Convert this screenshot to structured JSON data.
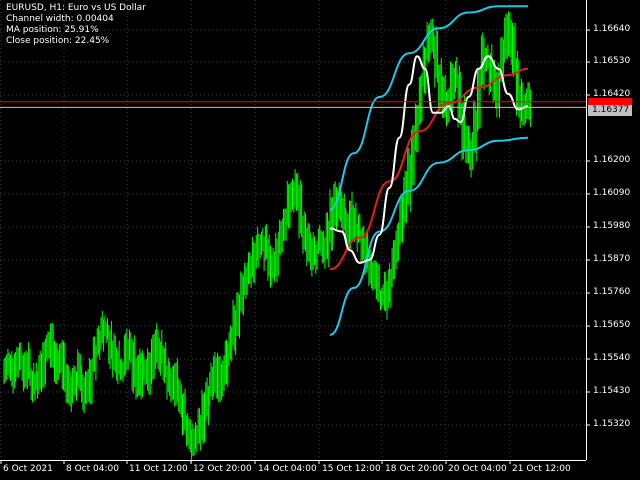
{
  "info": {
    "symbol_line": "EURUSD, H1:  Euro vs US Dollar",
    "channel_width": "Channel width: 0.00404",
    "ma_position": "MA position: 25.91%",
    "close_position": "Close position: 22.45%"
  },
  "price_axis": {
    "labels": [
      "1.16640",
      "1.16530",
      "1.16420",
      "1.16200",
      "1.16090",
      "1.15980",
      "1.15870",
      "1.15760",
      "1.15650",
      "1.15540",
      "1.15430",
      "1.15320"
    ],
    "bid_tag": "1.16377",
    "ask_tag": ""
  },
  "time_axis": {
    "labels": [
      "6 Oct 2021",
      "8 Oct 04:00",
      "11 Oct 12:00",
      "12 Oct 20:00",
      "14 Oct 04:00",
      "15 Oct 12:00",
      "18 Oct 20:00",
      "20 Oct 04:00",
      "21 Oct 12:00"
    ]
  },
  "colors": {
    "background": "#000000",
    "grid": "#2e4a4a",
    "bars": "#00ff00",
    "channel": "#1ec8e6",
    "ma_line": "#e61e1e",
    "smoothed_line": "#ffffff",
    "bid_line": "#c0c0c0",
    "ask_line": "#ff0000",
    "axis_text": "#ffffff"
  },
  "chart_data": {
    "type": "line",
    "instrument": "EURUSD",
    "timeframe": "H1",
    "ylim": [
      1.1525,
      1.1672
    ],
    "grid": true,
    "bid_price": 1.16377,
    "ask_price": 1.16395,
    "price_series": {
      "name": "EURUSD bars",
      "values": [
        1.1555,
        1.1553,
        1.1556,
        1.1558,
        1.1554,
        1.1556,
        1.1552,
        1.1549,
        1.1551,
        1.1554,
        1.1559,
        1.1563,
        1.1558,
        1.1554,
        1.1556,
        1.1552,
        1.1546,
        1.1549,
        1.1553,
        1.1551,
        1.1547,
        1.155,
        1.1556,
        1.1561,
        1.1564,
        1.1568,
        1.1566,
        1.156,
        1.1557,
        1.1554,
        1.1556,
        1.1561,
        1.1559,
        1.1552,
        1.1548,
        1.1553,
        1.1551,
        1.1556,
        1.156,
        1.1562,
        1.1558,
        1.1553,
        1.155,
        1.1552,
        1.1548,
        1.1544,
        1.1538,
        1.1534,
        1.1531,
        1.1533,
        1.1537,
        1.1542,
        1.1547,
        1.1551,
        1.1554,
        1.155,
        1.1553,
        1.1558,
        1.1564,
        1.1569,
        1.1574,
        1.158,
        1.1584,
        1.1588,
        1.1592,
        1.1595,
        1.1593,
        1.159,
        1.1587,
        1.1589,
        1.1594,
        1.1598,
        1.1603,
        1.1609,
        1.1613,
        1.1608,
        1.1601,
        1.1597,
        1.1594,
        1.159,
        1.1593,
        1.1596,
        1.1592,
        1.1598,
        1.1604,
        1.1609,
        1.1606,
        1.1602,
        1.1598,
        1.1603,
        1.16,
        1.1596,
        1.1592,
        1.1588,
        1.1584,
        1.1581,
        1.1578,
        1.1576,
        1.1579,
        1.1584,
        1.159,
        1.1597,
        1.1604,
        1.1611,
        1.1619,
        1.1627,
        1.1636,
        1.1646,
        1.1655,
        1.1662,
        1.1658,
        1.165,
        1.1642,
        1.1636,
        1.1639,
        1.1646,
        1.1644,
        1.1636,
        1.1628,
        1.1621,
        1.1625,
        1.1636,
        1.1648,
        1.1655,
        1.1653,
        1.1648,
        1.1642,
        1.1648,
        1.1656,
        1.1662,
        1.1658,
        1.165,
        1.1642,
        1.1636,
        1.164,
        1.1638
      ]
    },
    "channel_upper": {
      "name": "Channel upper",
      "points": [
        [
          0,
          1.1605
        ],
        [
          0.12,
          1.1623
        ],
        [
          0.25,
          1.1641
        ],
        [
          0.4,
          1.1655
        ],
        [
          0.55,
          1.1663
        ],
        [
          0.7,
          1.1668
        ],
        [
          0.85,
          1.167
        ],
        [
          1,
          1.167
        ]
      ]
    },
    "channel_lower": {
      "name": "Channel lower",
      "points": [
        [
          0,
          1.1565
        ],
        [
          0.12,
          1.158
        ],
        [
          0.25,
          1.1598
        ],
        [
          0.4,
          1.1611
        ],
        [
          0.55,
          1.162
        ],
        [
          0.7,
          1.1624
        ],
        [
          0.85,
          1.1627
        ],
        [
          1,
          1.1628
        ]
      ]
    },
    "ma_line": {
      "name": "MA",
      "points": [
        [
          0,
          1.1586
        ],
        [
          0.15,
          1.1596
        ],
        [
          0.3,
          1.1614
        ],
        [
          0.45,
          1.163
        ],
        [
          0.6,
          1.1639
        ],
        [
          0.75,
          1.1644
        ],
        [
          0.9,
          1.1648
        ],
        [
          1,
          1.165
        ]
      ]
    },
    "smoothed_line": {
      "name": "Smoothed",
      "points": [
        [
          0,
          1.1599
        ],
        [
          0.06,
          1.1598
        ],
        [
          0.1,
          1.1592
        ],
        [
          0.15,
          1.1588
        ],
        [
          0.2,
          1.1589
        ],
        [
          0.25,
          1.1597
        ],
        [
          0.3,
          1.1612
        ],
        [
          0.35,
          1.1628
        ],
        [
          0.4,
          1.1645
        ],
        [
          0.44,
          1.1654
        ],
        [
          0.48,
          1.165
        ],
        [
          0.52,
          1.1636
        ],
        [
          0.56,
          1.1636
        ],
        [
          0.6,
          1.1638
        ],
        [
          0.63,
          1.1634
        ],
        [
          0.66,
          1.1633
        ],
        [
          0.7,
          1.1641
        ],
        [
          0.75,
          1.165
        ],
        [
          0.8,
          1.1654
        ],
        [
          0.85,
          1.165
        ],
        [
          0.9,
          1.1642
        ],
        [
          0.95,
          1.1637
        ],
        [
          1,
          1.1638
        ]
      ]
    }
  }
}
